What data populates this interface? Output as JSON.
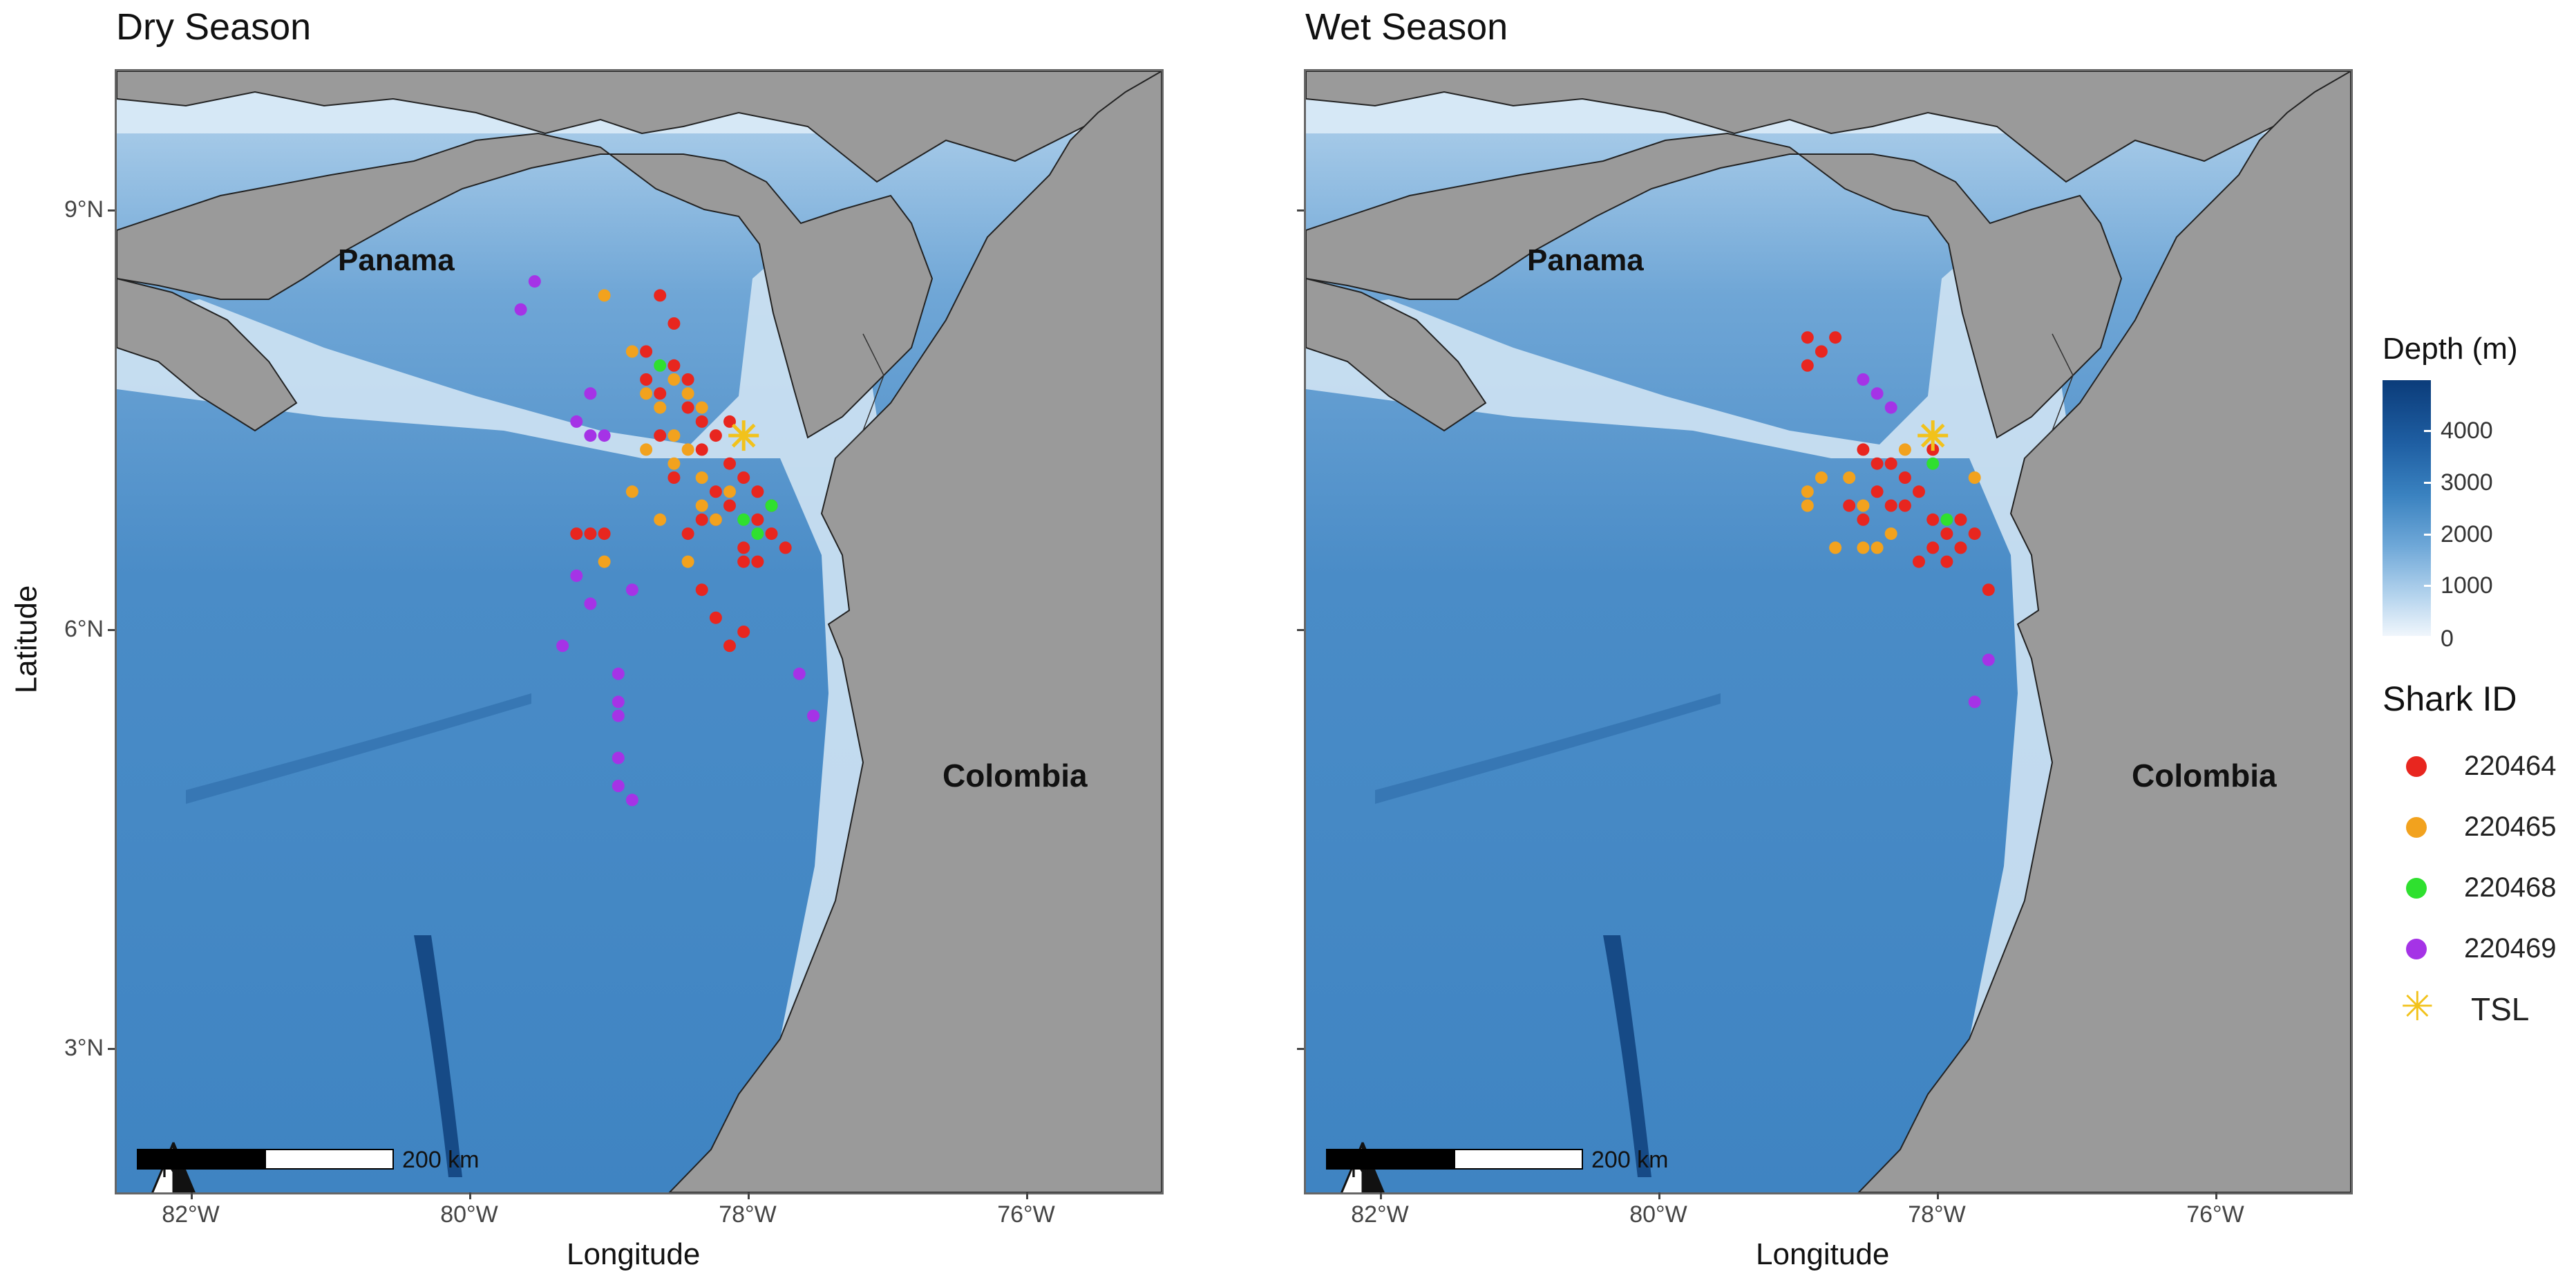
{
  "panels": [
    {
      "title": "Dry Season",
      "labels": {
        "panama": "Panama",
        "colombia": "Colombia"
      },
      "scale_label": "200 km",
      "north_label": "N"
    },
    {
      "title": "Wet Season",
      "labels": {
        "panama": "Panama",
        "colombia": "Colombia"
      },
      "scale_label": "200 km",
      "north_label": "N"
    }
  ],
  "axes": {
    "xlabel": "Longitude",
    "ylabel": "Latitude",
    "xticks": [
      "82°W",
      "80°W",
      "78°W",
      "76°W"
    ],
    "yticks": [
      "9°N",
      "6°N",
      "3°N"
    ]
  },
  "legend": {
    "depth": {
      "title": "Depth (m)",
      "ticks": [
        "4000",
        "3000",
        "2000",
        "1000",
        "0"
      ]
    },
    "shark": {
      "title": "Shark ID",
      "items": [
        {
          "label": "220464",
          "color": "#e8261f"
        },
        {
          "label": "220465",
          "color": "#f2a21e"
        },
        {
          "label": "220468",
          "color": "#2fe02f"
        },
        {
          "label": "220469",
          "color": "#a533e6"
        },
        {
          "label": "TSL",
          "color": "#f2c21b",
          "symbol": "asterisk"
        }
      ]
    }
  },
  "chart_data": {
    "type": "scatter",
    "xlim": [
      -82.5,
      -75
    ],
    "ylim": [
      2,
      10
    ],
    "tsl": {
      "lon": -78.0,
      "lat": 7.4
    },
    "dry": {
      "220464": [
        [
          -78.6,
          8.4
        ],
        [
          -78.5,
          8.2
        ],
        [
          -78.7,
          8.0
        ],
        [
          -78.5,
          7.9
        ],
        [
          -78.6,
          7.7
        ],
        [
          -78.4,
          7.6
        ],
        [
          -78.3,
          7.5
        ],
        [
          -78.2,
          7.4
        ],
        [
          -78.1,
          7.2
        ],
        [
          -78.0,
          7.1
        ],
        [
          -78.2,
          7.0
        ],
        [
          -77.9,
          7.0
        ],
        [
          -77.8,
          6.9
        ],
        [
          -78.1,
          6.9
        ],
        [
          -77.9,
          6.8
        ],
        [
          -78.2,
          6.8
        ],
        [
          -77.8,
          6.7
        ],
        [
          -78.0,
          6.6
        ],
        [
          -77.7,
          6.6
        ],
        [
          -78.3,
          6.8
        ],
        [
          -78.4,
          6.7
        ],
        [
          -77.9,
          6.5
        ],
        [
          -78.0,
          6.5
        ],
        [
          -78.3,
          6.3
        ],
        [
          -78.2,
          6.1
        ],
        [
          -78.0,
          6.0
        ],
        [
          -78.1,
          5.9
        ],
        [
          -79.1,
          6.7
        ],
        [
          -79.0,
          6.7
        ],
        [
          -79.2,
          6.7
        ],
        [
          -78.4,
          7.8
        ],
        [
          -78.7,
          7.8
        ],
        [
          -78.3,
          7.3
        ],
        [
          -78.5,
          7.1
        ],
        [
          -78.1,
          7.5
        ],
        [
          -78.6,
          7.4
        ]
      ],
      "220465": [
        [
          -79.0,
          8.4
        ],
        [
          -78.8,
          8.0
        ],
        [
          -78.7,
          7.7
        ],
        [
          -78.5,
          7.8
        ],
        [
          -78.4,
          7.7
        ],
        [
          -78.3,
          7.6
        ],
        [
          -78.6,
          7.6
        ],
        [
          -78.5,
          7.4
        ],
        [
          -78.4,
          7.3
        ],
        [
          -78.7,
          7.3
        ],
        [
          -78.3,
          7.1
        ],
        [
          -78.5,
          7.2
        ],
        [
          -78.2,
          6.8
        ],
        [
          -78.6,
          6.8
        ],
        [
          -78.8,
          7.0
        ],
        [
          -78.4,
          6.5
        ],
        [
          -79.0,
          6.5
        ],
        [
          -78.1,
          7.0
        ],
        [
          -78.3,
          6.9
        ]
      ],
      "220468": [
        [
          -78.6,
          7.9
        ],
        [
          -78.0,
          6.8
        ],
        [
          -77.8,
          6.9
        ],
        [
          -77.9,
          6.7
        ]
      ],
      "220469": [
        [
          -79.5,
          8.5
        ],
        [
          -79.6,
          8.3
        ],
        [
          -79.1,
          7.7
        ],
        [
          -79.2,
          7.5
        ],
        [
          -79.1,
          7.4
        ],
        [
          -79.0,
          7.4
        ],
        [
          -79.2,
          6.4
        ],
        [
          -79.1,
          6.2
        ],
        [
          -79.3,
          5.9
        ],
        [
          -78.8,
          6.3
        ],
        [
          -78.9,
          5.7
        ],
        [
          -78.9,
          5.5
        ],
        [
          -78.9,
          5.4
        ],
        [
          -78.9,
          5.1
        ],
        [
          -78.9,
          4.9
        ],
        [
          -78.8,
          4.8
        ],
        [
          -77.6,
          5.7
        ],
        [
          -77.5,
          5.4
        ]
      ]
    },
    "wet": {
      "220464": [
        [
          -78.9,
          8.1
        ],
        [
          -78.8,
          8.0
        ],
        [
          -78.9,
          7.9
        ],
        [
          -78.7,
          8.1
        ],
        [
          -78.5,
          7.3
        ],
        [
          -78.3,
          7.2
        ],
        [
          -78.2,
          7.1
        ],
        [
          -78.4,
          7.0
        ],
        [
          -78.1,
          7.0
        ],
        [
          -78.2,
          6.9
        ],
        [
          -78.0,
          6.8
        ],
        [
          -77.9,
          6.7
        ],
        [
          -78.0,
          6.6
        ],
        [
          -77.8,
          6.6
        ],
        [
          -77.7,
          6.7
        ],
        [
          -78.1,
          6.5
        ],
        [
          -77.9,
          6.5
        ],
        [
          -78.3,
          6.9
        ],
        [
          -78.5,
          6.8
        ],
        [
          -78.6,
          6.9
        ],
        [
          -77.6,
          6.3
        ],
        [
          -77.8,
          6.8
        ],
        [
          -78.4,
          7.2
        ],
        [
          -78.0,
          7.3
        ]
      ],
      "220465": [
        [
          -78.8,
          7.1
        ],
        [
          -78.9,
          7.0
        ],
        [
          -78.6,
          7.1
        ],
        [
          -78.5,
          6.6
        ],
        [
          -78.4,
          6.6
        ],
        [
          -78.3,
          6.7
        ],
        [
          -78.7,
          6.6
        ],
        [
          -78.5,
          6.9
        ],
        [
          -77.7,
          7.1
        ],
        [
          -78.9,
          6.9
        ],
        [
          -78.2,
          7.3
        ]
      ],
      "220468": [
        [
          -77.9,
          6.8
        ],
        [
          -78.0,
          7.2
        ]
      ],
      "220469": [
        [
          -78.5,
          7.8
        ],
        [
          -78.4,
          7.7
        ],
        [
          -78.3,
          7.6
        ],
        [
          -77.6,
          5.8
        ],
        [
          -77.7,
          5.5
        ]
      ]
    }
  }
}
